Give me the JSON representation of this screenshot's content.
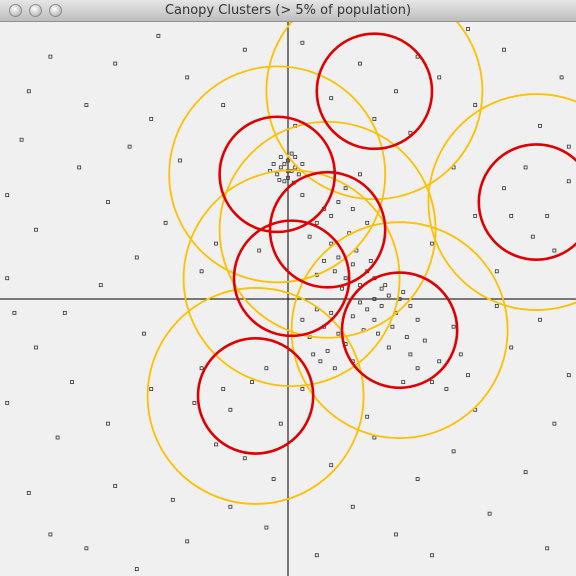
{
  "window": {
    "title": "Canopy Clusters (> 5% of population)"
  },
  "colors": {
    "background": "#f0f0f0",
    "axis": "#000000",
    "point": "#333333",
    "canopy_outer": "#ffc000",
    "canopy_inner": "#e00000"
  },
  "chart_data": {
    "type": "scatter",
    "axes": {
      "xlim": [
        -4,
        4
      ],
      "ylim": [
        -4,
        4
      ],
      "origin": [
        0,
        0
      ]
    },
    "canopies": [
      {
        "x": 1.2,
        "y": 3.0,
        "outer_r": 1.5,
        "inner_r": 0.8
      },
      {
        "x": -0.15,
        "y": 1.8,
        "outer_r": 1.5,
        "inner_r": 0.8
      },
      {
        "x": 0.55,
        "y": 1.0,
        "outer_r": 1.5,
        "inner_r": 0.8
      },
      {
        "x": 3.45,
        "y": 1.4,
        "outer_r": 1.5,
        "inner_r": 0.8
      },
      {
        "x": 0.05,
        "y": 0.3,
        "outer_r": 1.5,
        "inner_r": 0.8
      },
      {
        "x": 1.55,
        "y": -0.45,
        "outer_r": 1.5,
        "inner_r": 0.8
      },
      {
        "x": -0.45,
        "y": -1.4,
        "outer_r": 1.5,
        "inner_r": 0.8
      }
    ],
    "points": [
      [
        -0.1,
        1.9
      ],
      [
        -0.05,
        1.95
      ],
      [
        0.0,
        2.0
      ],
      [
        0.05,
        1.85
      ],
      [
        -0.15,
        1.8
      ],
      [
        0.1,
        1.9
      ],
      [
        -0.2,
        1.95
      ],
      [
        0.0,
        1.75
      ],
      [
        0.15,
        1.8
      ],
      [
        -0.1,
        2.05
      ],
      [
        0.05,
        2.1
      ],
      [
        -0.25,
        1.85
      ],
      [
        0.2,
        1.95
      ],
      [
        -0.05,
        1.7
      ],
      [
        0.1,
        2.05
      ],
      [
        0.0,
        1.85
      ],
      [
        -0.12,
        1.72
      ],
      [
        0.08,
        1.68
      ],
      [
        0.7,
        0.6
      ],
      [
        0.9,
        0.5
      ],
      [
        1.1,
        0.4
      ],
      [
        0.8,
        0.3
      ],
      [
        1.0,
        0.2
      ],
      [
        1.2,
        0.3
      ],
      [
        0.6,
        0.8
      ],
      [
        0.5,
        0.55
      ],
      [
        0.95,
        0.7
      ],
      [
        0.75,
        0.15
      ],
      [
        1.15,
        0.55
      ],
      [
        0.4,
        0.35
      ],
      [
        1.3,
        0.15
      ],
      [
        0.85,
        0.95
      ],
      [
        0.65,
        0.4
      ],
      [
        1.2,
        0.0
      ],
      [
        1.3,
        -0.1
      ],
      [
        1.4,
        0.05
      ],
      [
        1.5,
        -0.2
      ],
      [
        1.1,
        -0.15
      ],
      [
        1.6,
        0.1
      ],
      [
        1.45,
        -0.4
      ],
      [
        1.2,
        -0.3
      ],
      [
        1.7,
        -0.1
      ],
      [
        1.35,
        0.2
      ],
      [
        1.55,
        0.0
      ],
      [
        1.0,
        -0.05
      ],
      [
        0.9,
        -0.25
      ],
      [
        1.8,
        -0.3
      ],
      [
        1.25,
        -0.5
      ],
      [
        1.65,
        -0.55
      ],
      [
        1.4,
        -0.7
      ],
      [
        1.05,
        -0.45
      ],
      [
        0.6,
        -0.2
      ],
      [
        0.5,
        -0.4
      ],
      [
        0.7,
        -0.5
      ],
      [
        0.4,
        -0.15
      ],
      [
        0.8,
        -0.65
      ],
      [
        0.55,
        -0.75
      ],
      [
        0.3,
        -0.55
      ],
      [
        0.65,
        -1.0
      ],
      [
        0.45,
        -0.9
      ],
      [
        0.9,
        -0.9
      ],
      [
        0.2,
        -0.3
      ],
      [
        0.35,
        -0.8
      ],
      [
        1.9,
        -0.6
      ],
      [
        2.1,
        -0.9
      ],
      [
        2.3,
        -0.4
      ],
      [
        2.0,
        -1.2
      ],
      [
        1.8,
        -1.0
      ],
      [
        2.4,
        -0.8
      ],
      [
        2.2,
        -1.3
      ],
      [
        1.6,
        -1.2
      ],
      [
        2.5,
        -1.1
      ],
      [
        1.7,
        -0.8
      ],
      [
        0.8,
        1.6
      ],
      [
        0.9,
        1.3
      ],
      [
        1.0,
        1.8
      ],
      [
        0.7,
        1.4
      ],
      [
        1.1,
        1.1
      ],
      [
        0.6,
        1.2
      ],
      [
        0.2,
        1.5
      ],
      [
        0.4,
        1.1
      ],
      [
        0.3,
        0.9
      ],
      [
        0.5,
        1.3
      ],
      [
        -1.2,
        -1.0
      ],
      [
        -0.8,
        -1.6
      ],
      [
        -0.5,
        -1.2
      ],
      [
        -0.1,
        -1.8
      ],
      [
        -1.0,
        -2.1
      ],
      [
        -0.3,
        -1.0
      ],
      [
        -0.6,
        -2.3
      ],
      [
        -1.3,
        -1.5
      ],
      [
        0.2,
        -1.3
      ],
      [
        -0.9,
        -1.3
      ],
      [
        3.0,
        1.6
      ],
      [
        3.3,
        1.9
      ],
      [
        3.6,
        1.2
      ],
      [
        3.9,
        1.7
      ],
      [
        3.4,
        0.9
      ],
      [
        3.1,
        1.2
      ],
      [
        3.7,
        0.7
      ],
      [
        1.0,
        3.4
      ],
      [
        1.5,
        3.0
      ],
      [
        1.8,
        3.5
      ],
      [
        1.2,
        2.6
      ],
      [
        0.6,
        2.9
      ],
      [
        1.7,
        2.4
      ],
      [
        2.1,
        3.2
      ],
      [
        -3.3,
        3.5
      ],
      [
        -2.8,
        2.8
      ],
      [
        -3.7,
        2.3
      ],
      [
        -2.5,
        1.4
      ],
      [
        -3.5,
        1.0
      ],
      [
        -2.1,
        0.6
      ],
      [
        -3.9,
        0.3
      ],
      [
        -2.9,
        1.9
      ],
      [
        -1.9,
        2.6
      ],
      [
        -1.4,
        3.2
      ],
      [
        -1.7,
        1.1
      ],
      [
        -2.4,
        3.4
      ],
      [
        -3.1,
        -0.2
      ],
      [
        -1.2,
        0.4
      ],
      [
        -1.5,
        2.0
      ],
      [
        -0.9,
        2.8
      ],
      [
        -2.2,
        2.2
      ],
      [
        -3.6,
        3.0
      ],
      [
        -0.6,
        3.6
      ],
      [
        -1.0,
        0.8
      ],
      [
        -2.6,
        0.2
      ],
      [
        -3.9,
        1.5
      ],
      [
        -1.8,
        3.8
      ],
      [
        -0.4,
        0.7
      ],
      [
        -3.8,
        -0.2
      ],
      [
        -3.5,
        -0.7
      ],
      [
        -3.9,
        -1.5
      ],
      [
        -3.2,
        -2.0
      ],
      [
        -3.6,
        -2.8
      ],
      [
        -2.8,
        -3.6
      ],
      [
        -2.4,
        -2.7
      ],
      [
        -3.0,
        -1.2
      ],
      [
        -2.0,
        -0.5
      ],
      [
        -1.6,
        -2.9
      ],
      [
        -2.5,
        -1.8
      ],
      [
        -1.4,
        -3.5
      ],
      [
        -0.8,
        -3.0
      ],
      [
        -0.3,
        -3.3
      ],
      [
        -2.1,
        -3.9
      ],
      [
        -3.3,
        -3.4
      ],
      [
        -1.9,
        -1.3
      ],
      [
        -0.2,
        -2.6
      ],
      [
        0.6,
        -2.4
      ],
      [
        1.2,
        -2.0
      ],
      [
        0.9,
        -3.0
      ],
      [
        1.8,
        -2.6
      ],
      [
        2.3,
        -2.2
      ],
      [
        1.5,
        -3.4
      ],
      [
        0.4,
        -3.7
      ],
      [
        2.8,
        -3.1
      ],
      [
        3.3,
        -2.5
      ],
      [
        2.6,
        -1.6
      ],
      [
        3.7,
        -1.8
      ],
      [
        3.1,
        -0.7
      ],
      [
        3.5,
        -0.3
      ],
      [
        3.9,
        -1.1
      ],
      [
        2.9,
        -0.1
      ],
      [
        1.1,
        -1.7
      ],
      [
        2.0,
        -3.7
      ],
      [
        3.6,
        -3.6
      ],
      [
        3.0,
        3.6
      ],
      [
        2.6,
        2.8
      ],
      [
        3.8,
        3.2
      ],
      [
        2.3,
        1.9
      ],
      [
        3.5,
        2.5
      ],
      [
        2.9,
        0.4
      ],
      [
        3.9,
        2.2
      ],
      [
        2.5,
        3.9
      ],
      [
        0.2,
        3.7
      ],
      [
        0.1,
        2.5
      ],
      [
        2.0,
        0.8
      ],
      [
        2.6,
        1.2
      ]
    ]
  }
}
